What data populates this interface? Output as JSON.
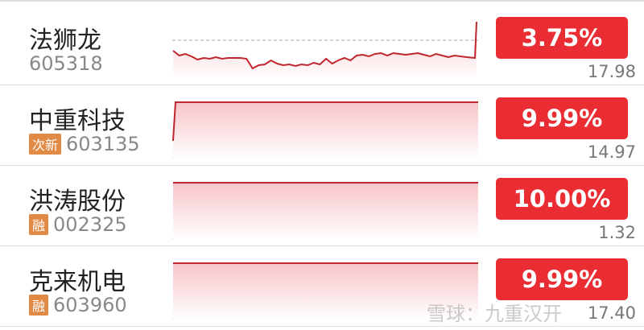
{
  "stocks": [
    {
      "name": "法狮龙",
      "code": "605318",
      "tag": "",
      "change": "3.75%",
      "price": "17.98",
      "color": "#ea2d33"
    },
    {
      "name": "中重科技",
      "code": "603135",
      "tag": "次新",
      "change": "9.99%",
      "price": "14.97",
      "color": "#ea2d33"
    },
    {
      "name": "洪涛股份",
      "code": "002325",
      "tag": "融",
      "change": "10.00%",
      "price": "1.32",
      "color": "#ea2d33"
    },
    {
      "name": "克来机电",
      "code": "603960",
      "tag": "融",
      "change": "9.99%",
      "price": "17.40",
      "color": "#ea2d33"
    }
  ],
  "watermark": "雪球：九重汉开"
}
